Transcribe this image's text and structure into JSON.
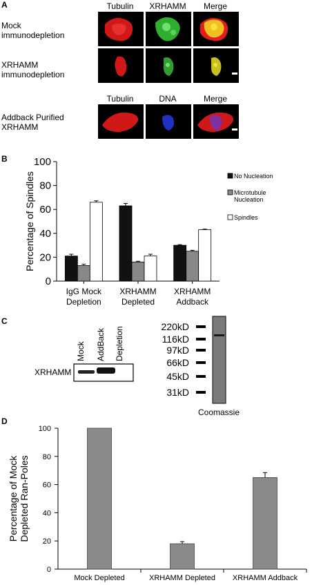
{
  "panel_a": {
    "letter": "A",
    "row_labels": [
      "Mock immunodepletion",
      "XRHAMM immunodepletion",
      "Addback Purified XRHAMM"
    ],
    "top_headers": [
      "Tubulin",
      "XRHAMM",
      "Merge"
    ],
    "bottom_headers": [
      "Tubulin",
      "DNA",
      "Merge"
    ]
  },
  "panel_b": {
    "letter": "B",
    "legend": [
      "No Nucleation",
      "Microtubule Nucleation",
      "Spindles"
    ],
    "colors": [
      "#111111",
      "#888888",
      "#ffffff"
    ]
  },
  "panel_c": {
    "letter": "C",
    "lane_labels": [
      "Mock",
      "AddBack",
      "Depletion"
    ],
    "blot_label": "XRHAMM",
    "markers": [
      "220kD",
      "116kD",
      "97kD",
      "66kD",
      "45kD",
      "31kD"
    ],
    "gel_label": "Coomassie"
  },
  "panel_d": {
    "letter": "D"
  },
  "chart_data": [
    {
      "type": "bar",
      "categories": [
        [
          "IgG Mock",
          "Depletion"
        ],
        [
          "XRHAMM",
          "Depleted"
        ],
        [
          "XRHAMM",
          "Addback"
        ]
      ],
      "series": [
        {
          "name": "No Nucleation",
          "values": [
            21,
            63,
            30
          ],
          "errors": [
            1.5,
            2,
            0.5
          ]
        },
        {
          "name": "Microtubule Nucleation",
          "values": [
            13,
            16,
            25
          ],
          "errors": [
            1.2,
            0.6,
            0.8
          ]
        },
        {
          "name": "Spindles",
          "values": [
            66,
            21,
            43
          ],
          "errors": [
            1.2,
            1.5,
            0.5
          ]
        }
      ],
      "ylabel": "Percentage of Spindles",
      "ylim": [
        0,
        100
      ],
      "yticks": [
        0,
        20,
        40,
        60,
        80,
        100
      ],
      "legend_placement": "right"
    },
    {
      "type": "bar",
      "categories": [
        "Mock Depleted",
        "XRHAMM Depleted",
        "XRHAMM Addback"
      ],
      "values": [
        100,
        18,
        65
      ],
      "errors": [
        0,
        1.5,
        3.5
      ],
      "ylabel": [
        "Percentage of Mock",
        "Depleted Ran-Poles"
      ],
      "ylim": [
        0,
        100
      ],
      "yticks": [
        0,
        20,
        40,
        60,
        80,
        100
      ]
    }
  ]
}
